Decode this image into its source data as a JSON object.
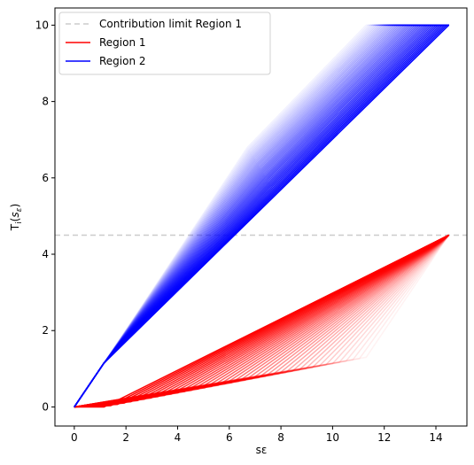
{
  "chart_data": {
    "type": "line",
    "xlabel": "sε",
    "ylabel_main": "T",
    "ylabel_sub": "i",
    "ylabel_arg": "s",
    "ylabel_arg_sub": "ε",
    "xlim": [
      -0.75,
      15.2
    ],
    "ylim": [
      -0.5,
      10.45
    ],
    "xticks": [
      0,
      2,
      4,
      6,
      8,
      10,
      12,
      14
    ],
    "yticks": [
      0,
      2,
      4,
      6,
      8,
      10
    ],
    "contribution_limit": 4.5,
    "s_max": 14.5,
    "kink_x": 1.15,
    "kink_y": 1.15,
    "region1_shift_x": [
      1.15,
      11.3
    ],
    "region1_shift_y": [
      0.0,
      1.3
    ],
    "region2_shift_x": [
      11.3,
      6.7
    ],
    "region2_shift_y": [
      10.0,
      6.8
    ],
    "family_size": 40,
    "colors": {
      "region1": "#ff0000",
      "region2": "#0000ff",
      "limit": "#cccccc"
    },
    "legend": {
      "placement": "top-left",
      "entries": [
        {
          "label": "Contribution limit Region 1",
          "color": "#cccccc",
          "style": "dashed"
        },
        {
          "label": "Region 1",
          "color": "#ff0000",
          "style": "solid"
        },
        {
          "label": "Region 2",
          "color": "#0000ff",
          "style": "solid"
        }
      ]
    }
  }
}
